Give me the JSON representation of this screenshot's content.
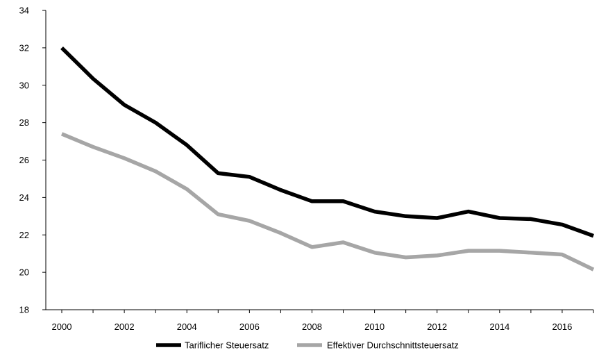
{
  "chart_data": {
    "type": "line",
    "title": "",
    "xlabel": "",
    "ylabel": "",
    "x": [
      2000,
      2001,
      2002,
      2003,
      2004,
      2005,
      2006,
      2007,
      2008,
      2009,
      2010,
      2011,
      2012,
      2013,
      2014,
      2015,
      2016,
      2017
    ],
    "x_ticks": [
      "2000",
      "2002",
      "2004",
      "2006",
      "2008",
      "2010",
      "2012",
      "2014",
      "2016"
    ],
    "ylim": [
      18,
      34
    ],
    "y_ticks": [
      "18",
      "20",
      "22",
      "24",
      "26",
      "28",
      "30",
      "32",
      "34"
    ],
    "grid": false,
    "legend_position": "bottom",
    "series": [
      {
        "name": "Tariflicher Steuersatz",
        "color": "#000000",
        "values": [
          32.0,
          30.35,
          28.95,
          28.0,
          26.8,
          25.3,
          25.1,
          24.4,
          23.8,
          23.8,
          23.25,
          23.0,
          22.9,
          23.25,
          22.9,
          22.85,
          22.55,
          21.95
        ]
      },
      {
        "name": "Effektiver Durchschnittsteuersatz",
        "color": "#a6a6a6",
        "values": [
          27.4,
          26.7,
          26.1,
          25.4,
          24.45,
          23.1,
          22.75,
          22.1,
          21.35,
          21.6,
          21.05,
          20.8,
          20.9,
          21.15,
          21.15,
          21.05,
          20.95,
          20.15
        ]
      }
    ]
  }
}
